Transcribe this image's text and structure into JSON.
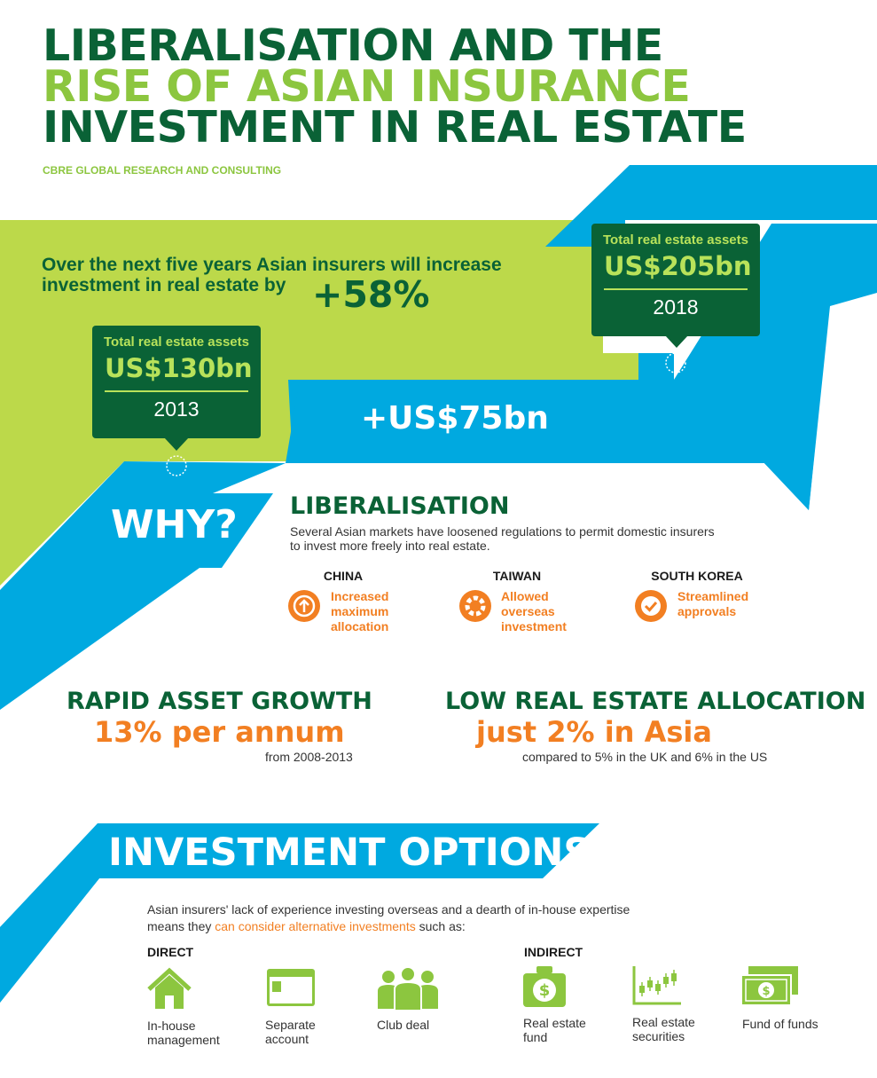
{
  "title": {
    "line1": "LIBERALISATION AND THE",
    "line2": "RISE OF ASIAN INSURANCE",
    "line3": "INVESTMENT IN REAL ESTATE"
  },
  "source": "CBRE GLOBAL RESEARCH AND CONSULTING",
  "headline": {
    "text1": "Over the next five years Asian insurers will increase",
    "text2": "investment in real estate by",
    "pct": "+58%"
  },
  "callout_2018": {
    "label": "Total real estate assets",
    "amount": "US$205bn",
    "year": "2018"
  },
  "callout_2013": {
    "label": "Total real estate assets",
    "amount": "US$130bn",
    "year": "2013"
  },
  "increase": "+US$75bn",
  "why": "WHY?",
  "liberalisation": {
    "heading": "LIBERALISATION",
    "desc1": "Several Asian markets have loosened regulations to permit domestic insurers",
    "desc2": "to invest more freely into real estate.",
    "countries": [
      {
        "name": "CHINA",
        "l1": "Increased",
        "l2": "maximum",
        "l3": "allocation",
        "icon": "arrow-up-icon"
      },
      {
        "name": "TAIWAN",
        "l1": "Allowed",
        "l2": "overseas",
        "l3": "investment",
        "icon": "globe-ring-icon"
      },
      {
        "name": "SOUTH KOREA",
        "l1": "Streamlined",
        "l2": "approvals",
        "l3": "",
        "icon": "checkmark-icon"
      }
    ]
  },
  "growth": {
    "heading": "RAPID ASSET GROWTH",
    "value": "13% per annum",
    "note": "from 2008-2013"
  },
  "allocation": {
    "heading": "LOW REAL ESTATE ALLOCATION",
    "value": "just 2% in Asia",
    "note": "compared to 5% in the UK and 6% in the US"
  },
  "options": {
    "heading": "INVESTMENT OPTIONS",
    "desc1": "Asian insurers' lack of experience investing overseas and a dearth of in-house expertise",
    "desc2a": "means they ",
    "desc2b": "can consider alternative investments",
    "desc2c": " such as:",
    "direct_label": "DIRECT",
    "indirect_label": "INDIRECT",
    "direct": [
      {
        "l1": "In-house",
        "l2": "management",
        "icon": "house-icon"
      },
      {
        "l1": "Separate",
        "l2": "account",
        "icon": "account-card-icon"
      },
      {
        "l1": "Club deal",
        "l2": "",
        "icon": "people-group-icon"
      }
    ],
    "indirect": [
      {
        "l1": "Real estate",
        "l2": "fund",
        "icon": "money-bag-icon"
      },
      {
        "l1": "Real estate",
        "l2": "securities",
        "icon": "stock-chart-icon"
      },
      {
        "l1": "Fund of funds",
        "l2": "",
        "icon": "banknotes-icon"
      }
    ]
  },
  "colors": {
    "dark_green": "#0a6236",
    "lime": "#8cc63f",
    "light_lime": "#bcd94a",
    "blue": "#00a9e0",
    "orange": "#f27f22"
  }
}
